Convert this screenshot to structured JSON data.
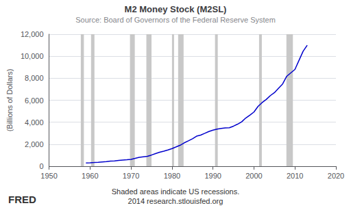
{
  "chart_data": {
    "type": "line",
    "title": "M2 Money Stock (M2SL)",
    "subtitle": "Source: Board of Governors of the Federal Reserve System",
    "ylabel": "(Billions of Dollars)",
    "annotations": [
      "Shaded areas indicate US recessions.\n2014 research.stlouisfed.org",
      "FRED"
    ],
    "x": [
      1959,
      1960,
      1961,
      1962,
      1963,
      1964,
      1965,
      1966,
      1967,
      1968,
      1969,
      1970,
      1971,
      1972,
      1973,
      1974,
      1975,
      1976,
      1977,
      1978,
      1979,
      1980,
      1981,
      1982,
      1983,
      1984,
      1985,
      1986,
      1987,
      1988,
      1989,
      1990,
      1991,
      1992,
      1993,
      1994,
      1995,
      1996,
      1997,
      1998,
      1999,
      2000,
      2001,
      2002,
      2003,
      2004,
      2005,
      2006,
      2007,
      2008,
      2009,
      2010,
      2011,
      2012,
      2013
    ],
    "values": [
      298,
      312,
      335,
      363,
      394,
      425,
      459,
      480,
      524,
      566,
      590,
      625,
      710,
      802,
      856,
      902,
      1016,
      1152,
      1270,
      1366,
      1474,
      1599,
      1755,
      1910,
      2127,
      2311,
      2497,
      2734,
      2832,
      2994,
      3159,
      3277,
      3379,
      3432,
      3484,
      3502,
      3642,
      3821,
      4033,
      4381,
      4645,
      4929,
      5439,
      5786,
      6068,
      6419,
      6685,
      7087,
      7479,
      8179,
      8486,
      8796,
      9627,
      10456,
      11000
    ],
    "color": "#0000cc",
    "bands": {
      "color": "#c8c8c8",
      "ranges": [
        [
          1957.75,
          1958.5
        ],
        [
          1960.25,
          1961.08
        ],
        [
          1969.75,
          1970.92
        ],
        [
          1973.75,
          1975.0
        ],
        [
          1980.0,
          1980.5
        ],
        [
          1981.5,
          1982.83
        ],
        [
          1990.5,
          1991.17
        ],
        [
          2001.25,
          2001.92
        ],
        [
          2007.92,
          2009.5
        ]
      ]
    },
    "xlim": [
      1950,
      2020
    ],
    "xticks": [
      1950,
      1960,
      1970,
      1980,
      1990,
      2000,
      2010,
      2020
    ],
    "ylim": [
      0,
      12000
    ],
    "yticks": [
      0,
      {
        "value": 2000,
        "label": "2,000"
      },
      {
        "value": 4000,
        "label": "4,000"
      },
      {
        "value": 6000,
        "label": "6,000"
      },
      {
        "value": 8000,
        "label": "8,000"
      },
      {
        "value": 10000,
        "label": "10,000"
      },
      {
        "value": 12000,
        "label": "12,000"
      }
    ],
    "grid": true
  }
}
